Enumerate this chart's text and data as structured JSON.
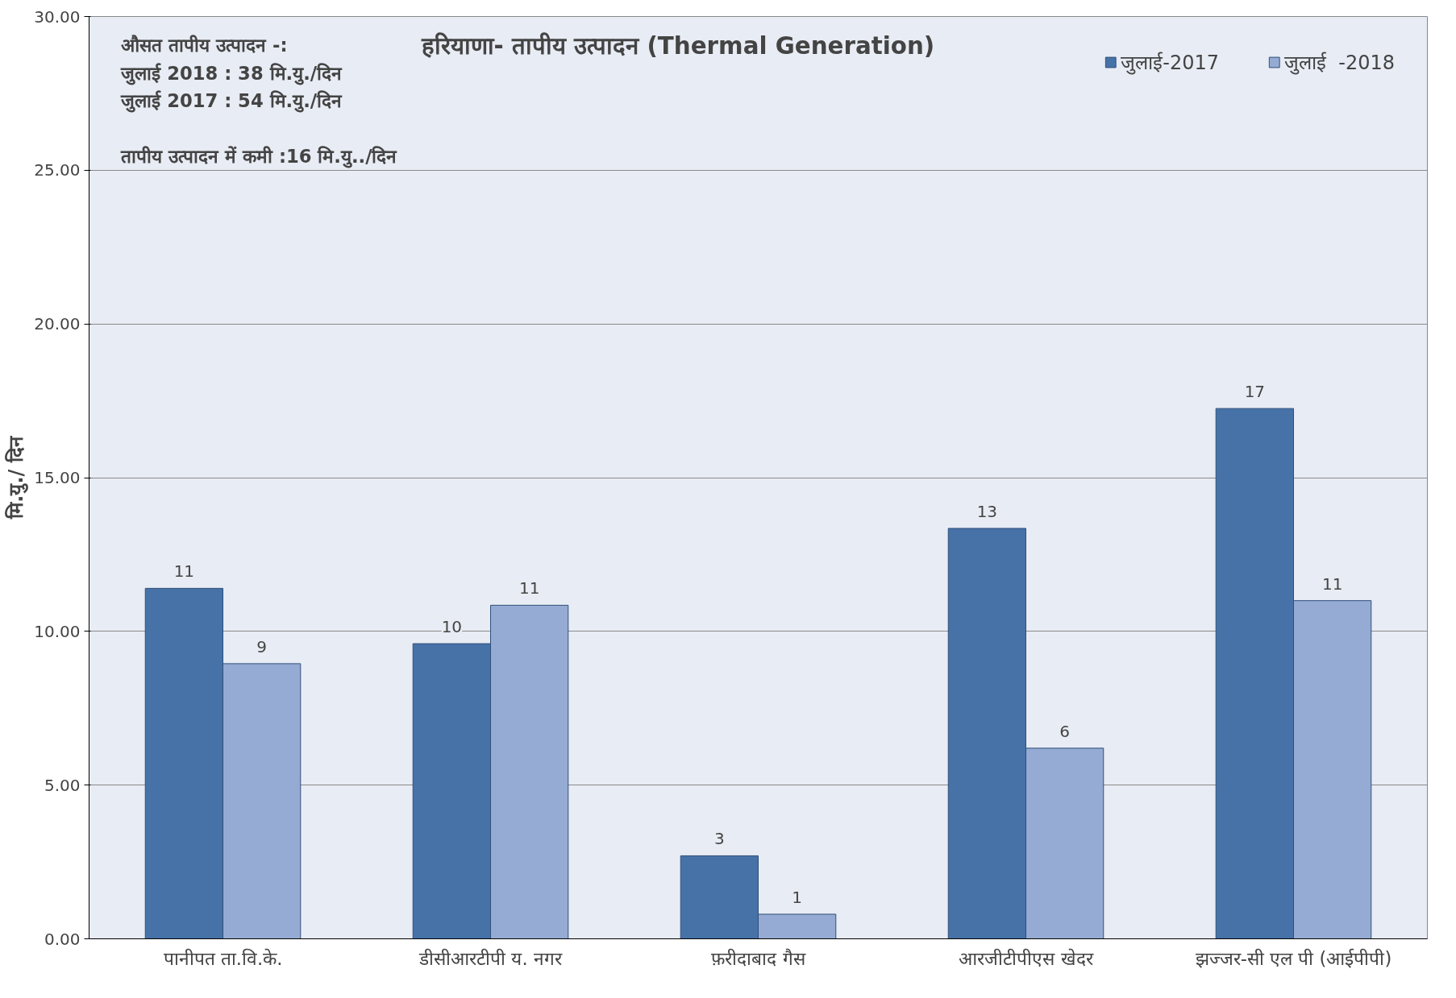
{
  "chart_data": {
    "type": "bar",
    "title": "हरियाणा- तापीय उत्पादन (Thermal Generation)",
    "ylabel": "मि.यु./ दिन",
    "categories": [
      "पानीपत ता.वि.के.",
      "डीसीआरटीपी य. नगर",
      "फ़रीदाबाद गैस",
      "आरजीटीपीएस खेदर",
      "झज्जर-सी एल पी (आईपीपी)"
    ],
    "series": [
      {
        "name": "जुलाई-2017",
        "color": "#4672a8",
        "values": [
          11.4,
          9.6,
          2.7,
          13.35,
          17.25
        ],
        "value_labels": [
          "11",
          "10",
          "3",
          "13",
          "17"
        ]
      },
      {
        "name": "जुलाई  -2018",
        "color": "#95abd3",
        "values": [
          8.95,
          10.85,
          0.8,
          6.2,
          11.0
        ],
        "value_labels": [
          "9",
          "11",
          "1",
          "6",
          "11"
        ]
      }
    ],
    "ylim": [
      0,
      30
    ],
    "yticks": [
      {
        "value": 0,
        "label": "0.00"
      },
      {
        "value": 5,
        "label": "5.00"
      },
      {
        "value": 10,
        "label": "10.00"
      },
      {
        "value": 15,
        "label": "15.00"
      },
      {
        "value": 20,
        "label": "20.00"
      },
      {
        "value": 25,
        "label": "25.00"
      },
      {
        "value": 30,
        "label": "30.00"
      }
    ],
    "grid": "y",
    "legend": "top right",
    "annotations": [
      "औसत तापीय उत्पादन -:",
      "जुलाई   2018  : 38 मि.यु./दिन",
      "जुलाई   2017 :  54 मि.यु./दिन",
      "तापीय उत्पादन में कमी :16 मि.यु../दिन"
    ]
  }
}
